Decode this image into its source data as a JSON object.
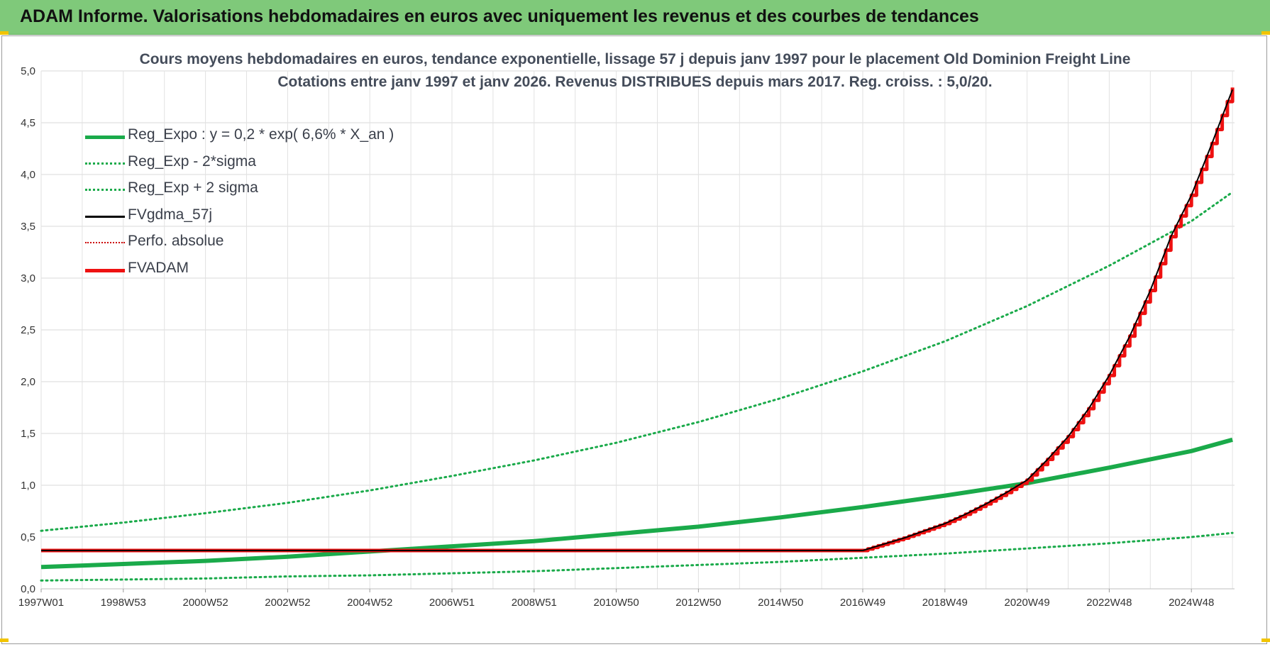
{
  "banner": {
    "title": "ADAM Informe. Valorisations hebdomadaires en euros avec uniquement les revenus et des courbes de tendances"
  },
  "chart_data": {
    "type": "line",
    "title": "Cours moyens hebdomadaires en euros, tendance exponentielle, lissage 57 j depuis janv 1997  pour le placement Old Dominion Freight Line",
    "subtitle": "Cotations entre janv 1997 et janv 2026. Revenus DISTRIBUES depuis mars 2017.  Reg. croiss. : 5,0/20.",
    "xlabel": "",
    "ylabel": "",
    "ylim": [
      0,
      5
    ],
    "xlim": [
      1997.0,
      2026.05
    ],
    "grid": true,
    "legend_position": "top-left",
    "y_ticks": [
      "0,0",
      "0,5",
      "1,0",
      "1,5",
      "2,0",
      "2,5",
      "3,0",
      "3,5",
      "4,0",
      "4,5",
      "5,0"
    ],
    "x_ticks": [
      {
        "label": "1997W01",
        "x": 1997.0
      },
      {
        "label": "1998W53",
        "x": 1999.0
      },
      {
        "label": "2000W52",
        "x": 2001.0
      },
      {
        "label": "2002W52",
        "x": 2003.0
      },
      {
        "label": "2004W52",
        "x": 2005.0
      },
      {
        "label": "2006W51",
        "x": 2007.0
      },
      {
        "label": "2008W51",
        "x": 2009.0
      },
      {
        "label": "2010W50",
        "x": 2011.0
      },
      {
        "label": "2012W50",
        "x": 2013.0
      },
      {
        "label": "2014W50",
        "x": 2015.0
      },
      {
        "label": "2016W49",
        "x": 2017.0
      },
      {
        "label": "2018W49",
        "x": 2019.0
      },
      {
        "label": "2020W49",
        "x": 2021.0
      },
      {
        "label": "2022W48",
        "x": 2023.0
      },
      {
        "label": "2024W48",
        "x": 2025.0
      }
    ],
    "series": [
      {
        "name": "Reg_Expo : y = 0,2 * exp( 6,6% *  X_an )",
        "color": "#1aaa4a",
        "style": "solid-thick",
        "x": [
          1997,
          1999,
          2001,
          2003,
          2005,
          2007,
          2009,
          2011,
          2013,
          2015,
          2017,
          2019,
          2021,
          2023,
          2025,
          2026
        ],
        "y": [
          0.21,
          0.24,
          0.27,
          0.31,
          0.36,
          0.41,
          0.46,
          0.53,
          0.6,
          0.69,
          0.79,
          0.9,
          1.02,
          1.17,
          1.33,
          1.44
        ]
      },
      {
        "name": "Reg_Exp - 2*sigma",
        "color": "#1aaa4a",
        "style": "dotted",
        "x": [
          1997,
          1999,
          2001,
          2003,
          2005,
          2007,
          2009,
          2011,
          2013,
          2015,
          2017,
          2019,
          2021,
          2023,
          2025,
          2026
        ],
        "y": [
          0.08,
          0.09,
          0.1,
          0.12,
          0.13,
          0.15,
          0.17,
          0.2,
          0.23,
          0.26,
          0.3,
          0.34,
          0.39,
          0.44,
          0.5,
          0.54
        ]
      },
      {
        "name": "Reg_Exp + 2 sigma",
        "color": "#1aaa4a",
        "style": "dotted",
        "x": [
          1997,
          1999,
          2001,
          2003,
          2005,
          2007,
          2009,
          2011,
          2013,
          2015,
          2017,
          2019,
          2021,
          2023,
          2025,
          2026
        ],
        "y": [
          0.56,
          0.64,
          0.73,
          0.83,
          0.95,
          1.09,
          1.24,
          1.41,
          1.61,
          1.84,
          2.1,
          2.39,
          2.73,
          3.12,
          3.55,
          3.83
        ]
      },
      {
        "name": "FVgdma_57j",
        "color": "#000000",
        "style": "solid",
        "x": [
          1997,
          2017.0,
          2017.5,
          2018,
          2018.5,
          2019,
          2019.5,
          2020,
          2020.5,
          2021,
          2021.5,
          2022,
          2022.5,
          2023,
          2023.5,
          2024,
          2024.5,
          2025,
          2025.5,
          2026
        ],
        "y": [
          0.37,
          0.37,
          0.43,
          0.49,
          0.56,
          0.63,
          0.72,
          0.82,
          0.93,
          1.05,
          1.25,
          1.47,
          1.74,
          2.06,
          2.44,
          2.88,
          3.4,
          3.8,
          4.3,
          4.82
        ]
      },
      {
        "name": "Perfo. absolue",
        "color": "#cc0000",
        "style": "dotted",
        "x": [],
        "y": []
      },
      {
        "name": "FVADAM",
        "color": "#ee1111",
        "style": "steps-thick",
        "x": [
          1997,
          2017.0,
          2017.5,
          2018,
          2018.5,
          2019,
          2019.5,
          2020,
          2020.5,
          2021,
          2021.5,
          2022,
          2022.5,
          2023,
          2023.5,
          2024,
          2024.5,
          2025,
          2025.5,
          2026
        ],
        "y": [
          0.37,
          0.37,
          0.43,
          0.49,
          0.56,
          0.63,
          0.72,
          0.82,
          0.93,
          1.05,
          1.25,
          1.47,
          1.74,
          2.06,
          2.44,
          2.88,
          3.4,
          3.8,
          4.3,
          4.84
        ]
      }
    ]
  }
}
